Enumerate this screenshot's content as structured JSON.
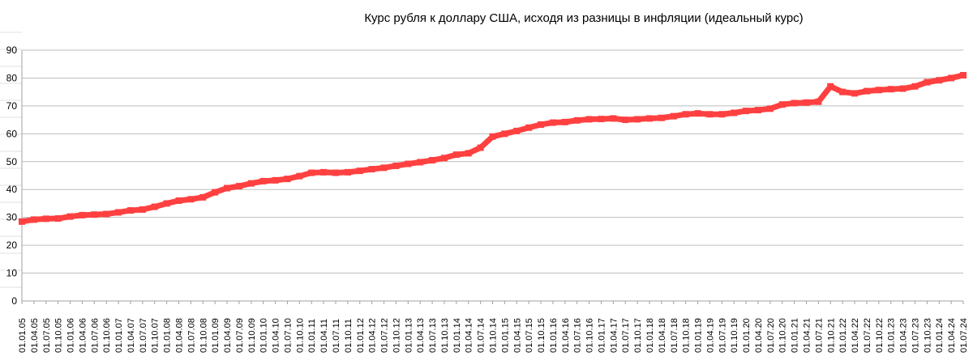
{
  "chart_data": {
    "type": "line",
    "title": "Курс рубля к доллару США, исходя из разницы в инфляции (идеальный курс)",
    "xlabel": "",
    "ylabel": "",
    "ylim": [
      0,
      90
    ],
    "y_ticks": [
      "0",
      "10",
      "20",
      "30",
      "40",
      "50",
      "60",
      "70",
      "80",
      "90"
    ],
    "grid": true,
    "legend": "none",
    "series_color": "#ff4040",
    "x_tick_labels": [
      "01.01.05",
      "01.04.05",
      "01.07.05",
      "01.10.05",
      "01.01.06",
      "01.04.06",
      "01.07.06",
      "01.10.06",
      "01.01.07",
      "01.04.07",
      "01.07.07",
      "01.10.07",
      "01.01.08",
      "01.04.08",
      "01.07.08",
      "01.10.08",
      "01.01.09",
      "01.04.09",
      "01.07.09",
      "01.10.09",
      "01.01.10",
      "01.04.10",
      "01.07.10",
      "01.10.10",
      "01.01.11",
      "01.04.11",
      "01.07.11",
      "01.10.11",
      "01.01.12",
      "01.04.12",
      "01.07.12",
      "01.10.12",
      "01.01.13",
      "01.04.13",
      "01.07.13",
      "01.10.13",
      "01.01.14",
      "01.04.14",
      "01.07.14",
      "01.10.14",
      "01.01.15",
      "01.04.15",
      "01.07.15",
      "01.10.15",
      "01.01.16",
      "01.04.16",
      "01.07.16",
      "01.10.16",
      "01.01.17",
      "01.04.17",
      "01.07.17",
      "01.10.17",
      "01.01.18",
      "01.04.18",
      "01.07.18",
      "01.10.18",
      "01.01.19",
      "01.04.19",
      "01.07.19",
      "01.10.19",
      "01.01.20",
      "01.04.20",
      "01.07.20",
      "01.10.20",
      "01.01.21",
      "01.04.21",
      "01.07.21",
      "01.10.21",
      "01.01.22",
      "01.04.22",
      "01.07.22",
      "01.10.22",
      "01.01.23",
      "01.04.23",
      "01.07.23",
      "01.10.23",
      "01.01.24",
      "01.04.24",
      "01.07.24"
    ],
    "series": [
      {
        "values": [
          28.5,
          29.2,
          29.5,
          29.6,
          30.3,
          30.8,
          31.0,
          31.2,
          31.8,
          32.5,
          32.8,
          33.8,
          35.0,
          36.0,
          36.5,
          37.2,
          39.0,
          40.5,
          41.2,
          42.2,
          43.0,
          43.3,
          43.8,
          44.8,
          46.0,
          46.2,
          46.0,
          46.2,
          46.7,
          47.3,
          47.8,
          48.5,
          49.2,
          49.8,
          50.5,
          51.3,
          52.5,
          53.0,
          55.0,
          59.0,
          60.0,
          61.0,
          62.2,
          63.3,
          64.0,
          64.2,
          64.8,
          65.2,
          65.3,
          65.5,
          65.0,
          65.2,
          65.5,
          65.7,
          66.3,
          67.0,
          67.3,
          67.0,
          67.0,
          67.5,
          68.2,
          68.5,
          69.0,
          70.5,
          71.0,
          71.2,
          71.5,
          77.0,
          75.0,
          74.5,
          75.3,
          75.7,
          76.0,
          76.2,
          77.0,
          78.5,
          79.2,
          80.0,
          81.0
        ]
      }
    ]
  }
}
